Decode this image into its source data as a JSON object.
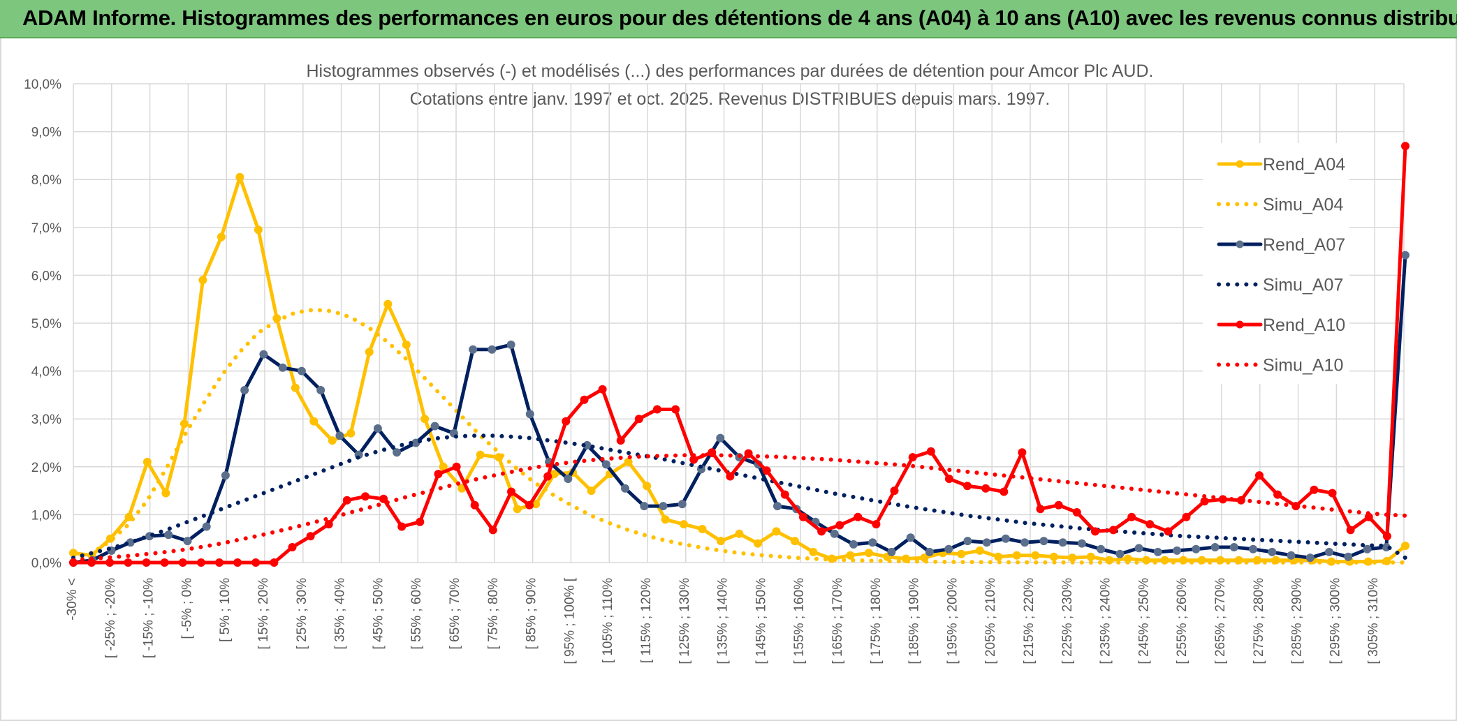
{
  "header": {
    "title": "ADAM Informe. Histogrammes des performances en euros pour des détentions de 4 ans (A04) à 10 ans (A10) avec les revenus connus distribués"
  },
  "colors": {
    "banner": "#7dc67e",
    "A04": "#ffc000",
    "A07": "#002060",
    "A10": "#ff0000",
    "markerA07": "#5b6f8c"
  },
  "chart_data": {
    "type": "line",
    "title_line1": "Histogrammes observés (-) et modélisés (...) des performances par durées de détention pour Amcor Plc AUD.",
    "title_line2": "Cotations entre janv. 1997 et oct. 2025. Revenus DISTRIBUES depuis mars. 1997.",
    "ylim": [
      0,
      10
    ],
    "y_ticks": [
      "0,0%",
      "1,0%",
      "2,0%",
      "3,0%",
      "4,0%",
      "5,0%",
      "6,0%",
      "7,0%",
      "8,0%",
      "9,0%",
      "10,0%"
    ],
    "x_tick_labels": [
      "-30% <",
      "[ -25% ; -20%",
      "[ -15% ; -10%",
      "[ -5% ; 0%",
      "[ 5% ; 10%",
      "[ 15% ; 20%",
      "[ 25% ; 30%",
      "[ 35% ; 40%",
      "[ 45% ; 50%",
      "[ 55% ; 60%",
      "[ 65% ; 70%",
      "[ 75% ; 80%",
      "[ 85% ; 90%",
      "[ 95% ; 100% [",
      "[ 105% ; 110%",
      "[ 115% ; 120%",
      "[ 125% ; 130%",
      "[ 135% ; 140%",
      "[ 145% ; 150%",
      "[ 155% ; 160%",
      "[ 165% ; 170%",
      "[ 175% ; 180%",
      "[ 185% ; 190%",
      "[ 195% ; 200%",
      "[ 205% ; 210%",
      "[ 215% ; 220%",
      "[ 225% ; 230%",
      "[ 235% ; 240%",
      "[ 245% ; 250%",
      "[ 255% ; 260%",
      "[ 265% ; 270%",
      "[ 275% ; 280%",
      "[ 285% ; 290%",
      "[ 295% ; 300%",
      "[ 305% ; 310%"
    ],
    "legend_position": "right",
    "grid": true,
    "series": [
      {
        "name": "Rend_A04",
        "style": "solid",
        "color": "#ffc000",
        "values": [
          0.2,
          0.15,
          0.5,
          0.95,
          2.1,
          1.45,
          2.9,
          5.9,
          6.8,
          8.05,
          6.95,
          5.1,
          3.65,
          2.95,
          2.55,
          2.7,
          4.4,
          5.4,
          4.55,
          3.0,
          2.0,
          1.55,
          2.25,
          2.2,
          1.12,
          1.22,
          1.85,
          1.88,
          1.5,
          1.85,
          2.1,
          1.6,
          0.9,
          0.8,
          0.7,
          0.45,
          0.6,
          0.4,
          0.65,
          0.45,
          0.22,
          0.08,
          0.15,
          0.2,
          0.12,
          0.08,
          0.1,
          0.2,
          0.18,
          0.25,
          0.12,
          0.15,
          0.15,
          0.12,
          0.1,
          0.12,
          0.05,
          0.08,
          0.05,
          0.05,
          0.05,
          0.05,
          0.05,
          0.05,
          0.05,
          0.05,
          0.05,
          0.05,
          0.02,
          0.02,
          0.02,
          0.03,
          0.35
        ]
      },
      {
        "name": "Simu_A04",
        "style": "dotted",
        "color": "#ffc000",
        "values": [
          0.05,
          0.2,
          0.45,
          0.8,
          1.3,
          1.95,
          2.65,
          3.3,
          3.9,
          4.4,
          4.8,
          5.05,
          5.22,
          5.28,
          5.25,
          5.12,
          4.9,
          4.6,
          4.25,
          3.85,
          3.45,
          3.05,
          2.65,
          2.3,
          1.95,
          1.65,
          1.4,
          1.18,
          0.98,
          0.82,
          0.68,
          0.56,
          0.46,
          0.38,
          0.31,
          0.25,
          0.2,
          0.16,
          0.13,
          0.1,
          0.08,
          0.06,
          0.05,
          0.04,
          0.03,
          0.025,
          0.02,
          0.015,
          0.012,
          0.01,
          0.008,
          0.006,
          0.005,
          0.004,
          0.003,
          0.002,
          0.002,
          0.002,
          0.001,
          0.001,
          0.001,
          0.001,
          0.001,
          0.001,
          0.001,
          0.001,
          0.001,
          0.001,
          0.001,
          0.001,
          0.001,
          0.001,
          0.001
        ]
      },
      {
        "name": "Rend_A07",
        "style": "solid",
        "color": "#002060",
        "values": [
          0.0,
          0.05,
          0.25,
          0.42,
          0.55,
          0.58,
          0.45,
          0.75,
          1.82,
          3.6,
          4.35,
          4.07,
          4.0,
          3.6,
          2.65,
          2.25,
          2.8,
          2.3,
          2.5,
          2.85,
          2.7,
          4.45,
          4.45,
          4.55,
          3.1,
          2.1,
          1.75,
          2.45,
          2.05,
          1.55,
          1.18,
          1.18,
          1.22,
          1.95,
          2.6,
          2.2,
          2.05,
          1.18,
          1.12,
          0.85,
          0.6,
          0.38,
          0.42,
          0.22,
          0.52,
          0.22,
          0.28,
          0.45,
          0.42,
          0.5,
          0.42,
          0.45,
          0.42,
          0.4,
          0.28,
          0.18,
          0.3,
          0.22,
          0.25,
          0.28,
          0.32,
          0.32,
          0.28,
          0.22,
          0.15,
          0.1,
          0.22,
          0.12,
          0.28,
          0.32,
          6.42
        ]
      },
      {
        "name": "Simu_A07",
        "style": "dotted",
        "color": "#002060",
        "values": [
          0.1,
          0.2,
          0.3,
          0.42,
          0.56,
          0.7,
          0.85,
          1.0,
          1.15,
          1.3,
          1.45,
          1.6,
          1.75,
          1.9,
          2.05,
          2.2,
          2.32,
          2.43,
          2.52,
          2.59,
          2.63,
          2.65,
          2.65,
          2.63,
          2.6,
          2.55,
          2.5,
          2.44,
          2.37,
          2.3,
          2.23,
          2.16,
          2.08,
          2.0,
          1.92,
          1.84,
          1.76,
          1.68,
          1.6,
          1.52,
          1.44,
          1.37,
          1.3,
          1.23,
          1.16,
          1.1,
          1.04,
          0.98,
          0.93,
          0.88,
          0.83,
          0.79,
          0.75,
          0.71,
          0.68,
          0.65,
          0.62,
          0.59,
          0.56,
          0.54,
          0.52,
          0.5,
          0.48,
          0.46,
          0.44,
          0.42,
          0.4,
          0.38,
          0.36,
          0.35,
          0.1
        ]
      },
      {
        "name": "Rend_A10",
        "style": "solid",
        "color": "#ff0000",
        "values": [
          0.0,
          0.0,
          0.0,
          0.0,
          0.0,
          0.0,
          0.0,
          0.0,
          0.0,
          0.0,
          0.0,
          0.0,
          0.32,
          0.55,
          0.8,
          1.3,
          1.38,
          1.33,
          0.75,
          0.85,
          1.85,
          2.0,
          1.2,
          0.68,
          1.48,
          1.2,
          1.8,
          2.95,
          3.4,
          3.62,
          2.55,
          3.0,
          3.2,
          3.2,
          2.15,
          2.3,
          1.8,
          2.28,
          1.92,
          1.42,
          0.95,
          0.65,
          0.78,
          0.95,
          0.8,
          1.5,
          2.2,
          2.32,
          1.75,
          1.6,
          1.55,
          1.48,
          2.3,
          1.12,
          1.2,
          1.05,
          0.65,
          0.68,
          0.95,
          0.8,
          0.65,
          0.95,
          1.28,
          1.32,
          1.3,
          1.82,
          1.42,
          1.18,
          1.52,
          1.45,
          0.68,
          0.95,
          0.55,
          8.7
        ]
      },
      {
        "name": "Simu_A10",
        "style": "dotted",
        "color": "#ff0000",
        "values": [
          0.05,
          0.08,
          0.11,
          0.14,
          0.18,
          0.22,
          0.27,
          0.33,
          0.4,
          0.48,
          0.56,
          0.65,
          0.74,
          0.84,
          0.94,
          1.05,
          1.15,
          1.26,
          1.37,
          1.47,
          1.57,
          1.67,
          1.76,
          1.84,
          1.92,
          1.99,
          2.05,
          2.1,
          2.14,
          2.17,
          2.2,
          2.22,
          2.23,
          2.24,
          2.24,
          2.24,
          2.23,
          2.22,
          2.21,
          2.19,
          2.17,
          2.15,
          2.12,
          2.09,
          2.06,
          2.03,
          1.99,
          1.95,
          1.91,
          1.87,
          1.83,
          1.79,
          1.75,
          1.71,
          1.67,
          1.63,
          1.59,
          1.55,
          1.51,
          1.47,
          1.43,
          1.39,
          1.35,
          1.31,
          1.27,
          1.23,
          1.19,
          1.15,
          1.11,
          1.07,
          1.03,
          1.0,
          0.98
        ]
      }
    ]
  }
}
